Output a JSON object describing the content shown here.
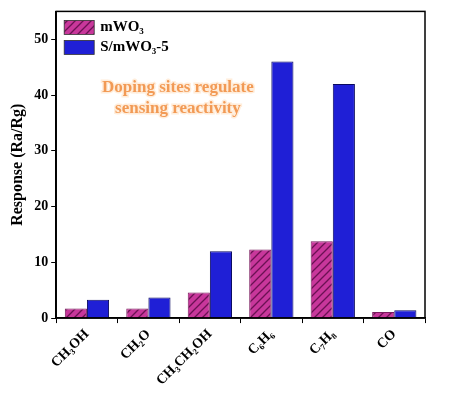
{
  "chart_data": {
    "type": "bar",
    "y_label": "Response (Ra/Rg)",
    "annotation": "Doping sites regulate\nsensing reactivity",
    "categories": [
      "CH₃OH",
      "CH₂O",
      "CH₃CH₂OH",
      "C₆H₆",
      "C₇H₈",
      "CO"
    ],
    "series": [
      {
        "name": "mWO₃",
        "color": "#c8379b",
        "values": [
          1.7,
          1.7,
          4.6,
          12.3,
          13.8,
          1.1
        ]
      },
      {
        "name": "S/mWO₃-5",
        "color": "#1f1fd6",
        "values": [
          3.3,
          3.7,
          12.0,
          46,
          42,
          1.4
        ]
      }
    ],
    "ylim": [
      0,
      55
    ],
    "yticks": [
      0,
      10,
      20,
      30,
      40,
      50
    ],
    "grid": false,
    "legend": "upper left"
  }
}
